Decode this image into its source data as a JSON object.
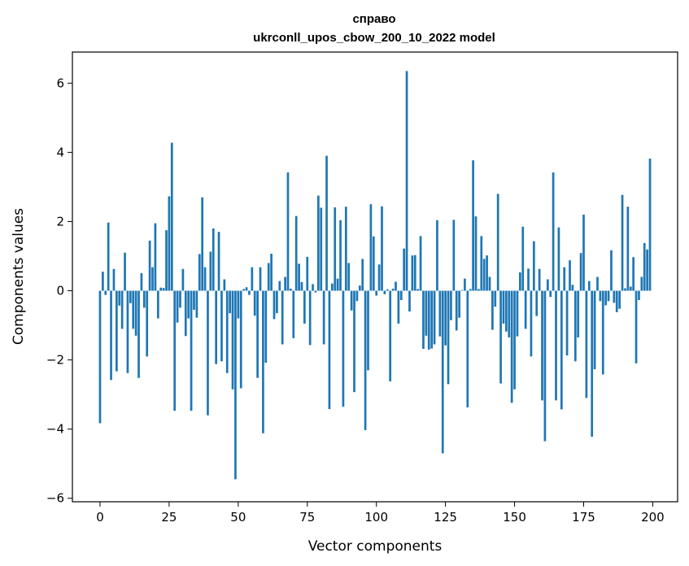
{
  "chart_data": {
    "type": "bar",
    "title": "справо",
    "subtitle": "ukrconll_upos_cbow_200_10_2022 model",
    "xlabel": "Vector components",
    "ylabel": "Components values",
    "xlim": [
      -10,
      209
    ],
    "ylim": [
      -6.1,
      6.9
    ],
    "xticks": [
      0,
      25,
      50,
      75,
      100,
      125,
      150,
      175,
      200
    ],
    "yticks": [
      -6,
      -4,
      -2,
      0,
      2,
      4,
      6
    ],
    "grid": false,
    "bar_color": "#1f77b4",
    "values": [
      -3.83,
      0.55,
      -0.12,
      1.97,
      -2.58,
      0.63,
      -2.33,
      -0.43,
      -1.1,
      1.1,
      -2.38,
      -0.36,
      -1.1,
      -1.3,
      -2.52,
      0.51,
      -0.49,
      -1.9,
      1.45,
      0.68,
      1.95,
      -0.8,
      0.09,
      0.08,
      1.75,
      2.73,
      4.28,
      -3.47,
      -0.92,
      -0.49,
      0.63,
      -1.31,
      -0.8,
      -3.47,
      -0.55,
      -0.78,
      1.06,
      2.7,
      0.68,
      -3.6,
      1.13,
      1.8,
      -2.12,
      1.7,
      -2.04,
      0.33,
      -2.38,
      -0.65,
      -2.85,
      -5.45,
      -0.8,
      -2.82,
      0.05,
      0.1,
      -0.12,
      0.68,
      -0.72,
      -2.52,
      0.68,
      -4.12,
      -2.08,
      0.8,
      1.07,
      -0.82,
      -0.65,
      0.28,
      -1.55,
      0.4,
      3.42,
      0.06,
      -1.37,
      2.16,
      0.78,
      0.25,
      -0.95,
      0.98,
      -1.57,
      0.19,
      -0.05,
      2.75,
      2.4,
      -1.55,
      3.9,
      -3.42,
      0.21,
      2.41,
      0.35,
      2.04,
      -3.35,
      2.43,
      0.8,
      -0.57,
      -2.93,
      -0.3,
      0.15,
      0.92,
      -4.03,
      -2.3,
      2.5,
      1.57,
      -0.14,
      0.76,
      2.44,
      -0.1,
      0.04,
      -2.62,
      0.06,
      0.26,
      -0.95,
      -0.27,
      1.22,
      6.35,
      -0.6,
      1.02,
      1.03,
      0.05,
      1.58,
      -1.68,
      -1.3,
      -1.7,
      -1.67,
      -1.55,
      2.04,
      -1.32,
      -4.7,
      -1.58,
      -2.7,
      -0.85,
      2.05,
      -1.15,
      -0.78,
      0.02,
      0.35,
      -3.37,
      0.05,
      3.77,
      2.15,
      0.05,
      1.58,
      0.92,
      1.02,
      0.4,
      -1.13,
      -0.46,
      2.8,
      -2.68,
      -0.95,
      -1.18,
      -1.35,
      -3.24,
      -2.85,
      -1.32,
      0.53,
      1.85,
      -1.1,
      0.64,
      -1.9,
      1.43,
      -0.73,
      0.63,
      -3.17,
      -4.35,
      0.33,
      -0.18,
      3.42,
      -3.17,
      1.83,
      -3.43,
      0.68,
      -1.87,
      0.88,
      0.17,
      -2.04,
      -1.35,
      1.09,
      2.2,
      -3.1,
      0.28,
      -4.22,
      -2.27,
      0.4,
      -0.3,
      -2.42,
      -0.42,
      -0.3,
      1.17,
      -0.35,
      -0.62,
      -0.52,
      2.77,
      0.07,
      2.43,
      0.12,
      0.97,
      -2.1,
      -0.27,
      0.4,
      1.38,
      1.19,
      3.82
    ]
  }
}
